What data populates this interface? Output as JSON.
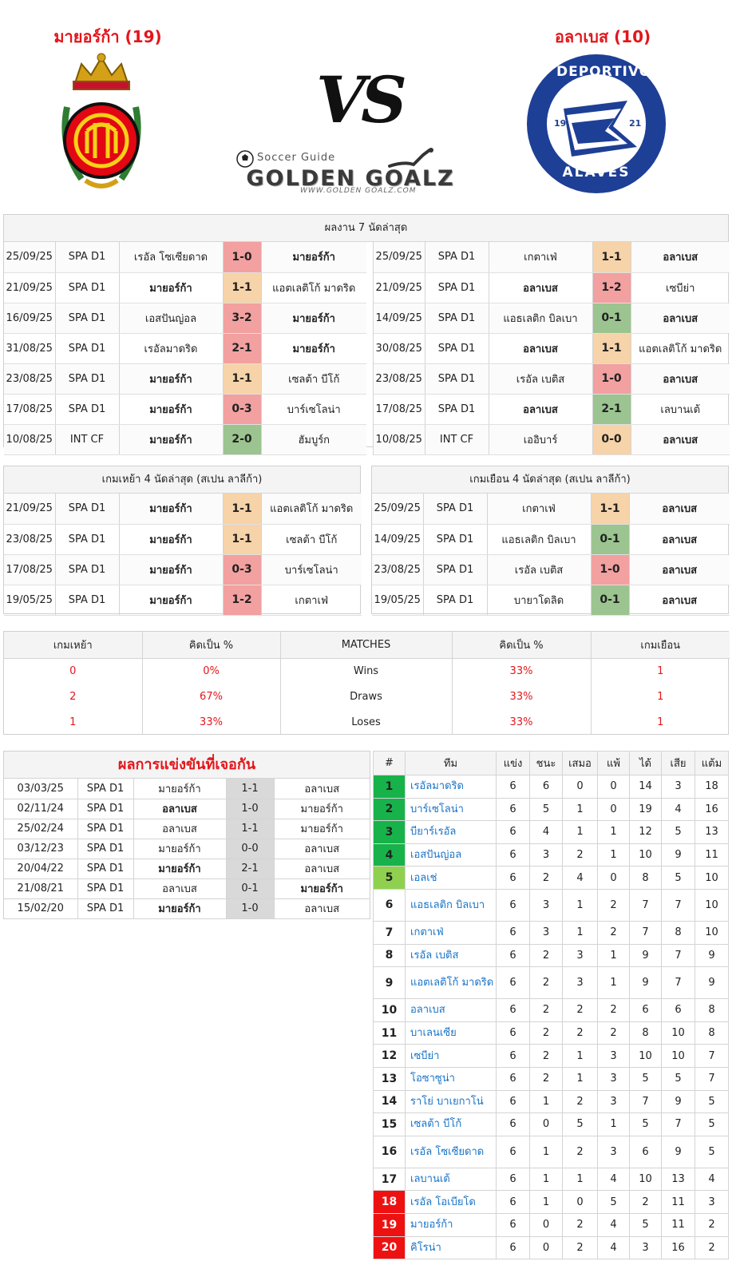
{
  "header": {
    "home_title": "มายอร์ก้า (19)",
    "away_title": "อลาเบส (10)",
    "vs_text": "VS",
    "brand_sub": "Soccer Guide",
    "brand_main": "GOLDEN GOALZ",
    "brand_url": "WWW.GOLDEN GOALZ.COM",
    "away_logo_text_top": "DEPORTIVO",
    "away_logo_text_bottom": "ALAVÉS",
    "away_logo_year_left": "19",
    "away_logo_year_right": "21",
    "away_logo_mono": "DA"
  },
  "last7": {
    "title": "ผลงาน 7 นัดล่าสุด",
    "home": [
      {
        "date": "25/09/25",
        "comp": "SPA D1",
        "home": "เรอัล โซเซียดาด",
        "score": "1-0",
        "away": "มายอร์ก้า",
        "bold": "away",
        "res": "loss"
      },
      {
        "date": "21/09/25",
        "comp": "SPA D1",
        "home": "มายอร์ก้า",
        "score": "1-1",
        "away": "แอตเลติโก้ มาดริด",
        "bold": "home",
        "res": "draw"
      },
      {
        "date": "16/09/25",
        "comp": "SPA D1",
        "home": "เอสปันญ่อล",
        "score": "3-2",
        "away": "มายอร์ก้า",
        "bold": "away",
        "res": "loss"
      },
      {
        "date": "31/08/25",
        "comp": "SPA D1",
        "home": "เรอัลมาดริด",
        "score": "2-1",
        "away": "มายอร์ก้า",
        "bold": "away",
        "res": "loss"
      },
      {
        "date": "23/08/25",
        "comp": "SPA D1",
        "home": "มายอร์ก้า",
        "score": "1-1",
        "away": "เซลต้า บีโก้",
        "bold": "home",
        "res": "draw"
      },
      {
        "date": "17/08/25",
        "comp": "SPA D1",
        "home": "มายอร์ก้า",
        "score": "0-3",
        "away": "บาร์เซโลน่า",
        "bold": "home",
        "res": "loss"
      },
      {
        "date": "10/08/25",
        "comp": "INT CF",
        "home": "มายอร์ก้า",
        "score": "2-0",
        "away": "ฮัมบูร์ก",
        "bold": "home",
        "res": "win"
      }
    ],
    "away": [
      {
        "date": "25/09/25",
        "comp": "SPA D1",
        "home": "เกตาเฟ่",
        "score": "1-1",
        "away": "อลาเบส",
        "bold": "away",
        "res": "draw"
      },
      {
        "date": "21/09/25",
        "comp": "SPA D1",
        "home": "อลาเบส",
        "score": "1-2",
        "away": "เซบีย่า",
        "bold": "home",
        "res": "loss"
      },
      {
        "date": "14/09/25",
        "comp": "SPA D1",
        "home": "แอธเลติก บิลเบา",
        "score": "0-1",
        "away": "อลาเบส",
        "bold": "away",
        "res": "win"
      },
      {
        "date": "30/08/25",
        "comp": "SPA D1",
        "home": "อลาเบส",
        "score": "1-1",
        "away": "แอตเลติโก้ มาดริด",
        "bold": "home",
        "res": "draw"
      },
      {
        "date": "23/08/25",
        "comp": "SPA D1",
        "home": "เรอัล เบติส",
        "score": "1-0",
        "away": "อลาเบส",
        "bold": "away",
        "res": "loss"
      },
      {
        "date": "17/08/25",
        "comp": "SPA D1",
        "home": "อลาเบส",
        "score": "2-1",
        "away": "เลบานเต้",
        "bold": "home",
        "res": "win"
      },
      {
        "date": "10/08/25",
        "comp": "INT CF",
        "home": "เออิบาร์",
        "score": "0-0",
        "away": "อลาเบส",
        "bold": "away",
        "res": "draw"
      }
    ]
  },
  "last4": {
    "home_title": "เกมเหย้า 4 นัดล่าสุด (สเปน ลาลีก้า)",
    "away_title": "เกมเยือน 4 นัดล่าสุด (สเปน ลาลีก้า)",
    "home": [
      {
        "date": "21/09/25",
        "comp": "SPA D1",
        "home": "มายอร์ก้า",
        "score": "1-1",
        "away": "แอตเลติโก้ มาดริด",
        "bold": "home",
        "res": "draw"
      },
      {
        "date": "23/08/25",
        "comp": "SPA D1",
        "home": "มายอร์ก้า",
        "score": "1-1",
        "away": "เซลต้า บีโก้",
        "bold": "home",
        "res": "draw"
      },
      {
        "date": "17/08/25",
        "comp": "SPA D1",
        "home": "มายอร์ก้า",
        "score": "0-3",
        "away": "บาร์เซโลน่า",
        "bold": "home",
        "res": "loss"
      },
      {
        "date": "19/05/25",
        "comp": "SPA D1",
        "home": "มายอร์ก้า",
        "score": "1-2",
        "away": "เกตาเฟ่",
        "bold": "home",
        "res": "loss"
      }
    ],
    "away": [
      {
        "date": "25/09/25",
        "comp": "SPA D1",
        "home": "เกตาเฟ่",
        "score": "1-1",
        "away": "อลาเบส",
        "bold": "away",
        "res": "draw"
      },
      {
        "date": "14/09/25",
        "comp": "SPA D1",
        "home": "แอธเลติก บิลเบา",
        "score": "0-1",
        "away": "อลาเบส",
        "bold": "away",
        "res": "win"
      },
      {
        "date": "23/08/25",
        "comp": "SPA D1",
        "home": "เรอัล เบติส",
        "score": "1-0",
        "away": "อลาเบส",
        "bold": "away",
        "res": "loss"
      },
      {
        "date": "19/05/25",
        "comp": "SPA D1",
        "home": "บายาโดลิด",
        "score": "0-1",
        "away": "อลาเบส",
        "bold": "away",
        "res": "win"
      }
    ]
  },
  "stats": {
    "headers": [
      "เกมเหย้า",
      "คิดเป็น %",
      "MATCHES",
      "คิดเป็น %",
      "เกมเยือน"
    ],
    "rows": [
      {
        "home": "0",
        "home_pct": "0%",
        "label": "Wins",
        "away_pct": "33%",
        "away": "1"
      },
      {
        "home": "2",
        "home_pct": "67%",
        "label": "Draws",
        "away_pct": "33%",
        "away": "1"
      },
      {
        "home": "1",
        "home_pct": "33%",
        "label": "Loses",
        "away_pct": "33%",
        "away": "1"
      }
    ]
  },
  "h2h": {
    "title": "ผลการแข่งขันที่เจอกัน",
    "rows": [
      {
        "date": "03/03/25",
        "comp": "SPA D1",
        "home": "มายอร์ก้า",
        "score": "1-1",
        "away": "อลาเบส",
        "bold": "none"
      },
      {
        "date": "02/11/24",
        "comp": "SPA D1",
        "home": "อลาเบส",
        "score": "1-0",
        "away": "มายอร์ก้า",
        "bold": "home"
      },
      {
        "date": "25/02/24",
        "comp": "SPA D1",
        "home": "อลาเบส",
        "score": "1-1",
        "away": "มายอร์ก้า",
        "bold": "none"
      },
      {
        "date": "03/12/23",
        "comp": "SPA D1",
        "home": "มายอร์ก้า",
        "score": "0-0",
        "away": "อลาเบส",
        "bold": "none"
      },
      {
        "date": "20/04/22",
        "comp": "SPA D1",
        "home": "มายอร์ก้า",
        "score": "2-1",
        "away": "อลาเบส",
        "bold": "home"
      },
      {
        "date": "21/08/21",
        "comp": "SPA D1",
        "home": "อลาเบส",
        "score": "0-1",
        "away": "มายอร์ก้า",
        "bold": "away"
      },
      {
        "date": "15/02/20",
        "comp": "SPA D1",
        "home": "มายอร์ก้า",
        "score": "1-0",
        "away": "อลาเบส",
        "bold": "home"
      }
    ]
  },
  "league": {
    "headers": [
      "#",
      "ทีม",
      "แข่ง",
      "ชนะ",
      "เสมอ",
      "แพ้",
      "ได้",
      "เสีย",
      "แต้ม"
    ],
    "colors": {
      "cl": "#17b34a",
      "el": "#8fd14f",
      "rel": "#ee1111"
    },
    "rows": [
      {
        "pos": "1",
        "team": "เรอัลมาดริด",
        "p": "6",
        "w": "6",
        "d": "0",
        "l": "0",
        "gf": "14",
        "ga": "3",
        "pts": "18",
        "zone": "cl"
      },
      {
        "pos": "2",
        "team": "บาร์เซโลน่า",
        "p": "6",
        "w": "5",
        "d": "1",
        "l": "0",
        "gf": "19",
        "ga": "4",
        "pts": "16",
        "zone": "cl"
      },
      {
        "pos": "3",
        "team": "บียาร์เรอัล",
        "p": "6",
        "w": "4",
        "d": "1",
        "l": "1",
        "gf": "12",
        "ga": "5",
        "pts": "13",
        "zone": "cl"
      },
      {
        "pos": "4",
        "team": "เอสปันญ่อล",
        "p": "6",
        "w": "3",
        "d": "2",
        "l": "1",
        "gf": "10",
        "ga": "9",
        "pts": "11",
        "zone": "cl"
      },
      {
        "pos": "5",
        "team": "เอลเช่",
        "p": "6",
        "w": "2",
        "d": "4",
        "l": "0",
        "gf": "8",
        "ga": "5",
        "pts": "10",
        "zone": "el"
      },
      {
        "pos": "6",
        "team": "แอธเลติก บิลเบา",
        "p": "6",
        "w": "3",
        "d": "1",
        "l": "2",
        "gf": "7",
        "ga": "7",
        "pts": "10",
        "zone": ""
      },
      {
        "pos": "7",
        "team": "เกตาเฟ่",
        "p": "6",
        "w": "3",
        "d": "1",
        "l": "2",
        "gf": "7",
        "ga": "8",
        "pts": "10",
        "zone": ""
      },
      {
        "pos": "8",
        "team": "เรอัล เบติส",
        "p": "6",
        "w": "2",
        "d": "3",
        "l": "1",
        "gf": "9",
        "ga": "7",
        "pts": "9",
        "zone": ""
      },
      {
        "pos": "9",
        "team": "แอตเลติโก้ มาดริด",
        "p": "6",
        "w": "2",
        "d": "3",
        "l": "1",
        "gf": "9",
        "ga": "7",
        "pts": "9",
        "zone": ""
      },
      {
        "pos": "10",
        "team": "อลาเบส",
        "p": "6",
        "w": "2",
        "d": "2",
        "l": "2",
        "gf": "6",
        "ga": "6",
        "pts": "8",
        "zone": ""
      },
      {
        "pos": "11",
        "team": "บาเลนเซีย",
        "p": "6",
        "w": "2",
        "d": "2",
        "l": "2",
        "gf": "8",
        "ga": "10",
        "pts": "8",
        "zone": ""
      },
      {
        "pos": "12",
        "team": "เซบีย่า",
        "p": "6",
        "w": "2",
        "d": "1",
        "l": "3",
        "gf": "10",
        "ga": "10",
        "pts": "7",
        "zone": ""
      },
      {
        "pos": "13",
        "team": "โอซาซูน่า",
        "p": "6",
        "w": "2",
        "d": "1",
        "l": "3",
        "gf": "5",
        "ga": "5",
        "pts": "7",
        "zone": ""
      },
      {
        "pos": "14",
        "team": "ราโย่ บาเยกาโน่",
        "p": "6",
        "w": "1",
        "d": "2",
        "l": "3",
        "gf": "7",
        "ga": "9",
        "pts": "5",
        "zone": ""
      },
      {
        "pos": "15",
        "team": "เซลต้า บีโก้",
        "p": "6",
        "w": "0",
        "d": "5",
        "l": "1",
        "gf": "5",
        "ga": "7",
        "pts": "5",
        "zone": ""
      },
      {
        "pos": "16",
        "team": "เรอัล โซเซียดาด",
        "p": "6",
        "w": "1",
        "d": "2",
        "l": "3",
        "gf": "6",
        "ga": "9",
        "pts": "5",
        "zone": ""
      },
      {
        "pos": "17",
        "team": "เลบานเต้",
        "p": "6",
        "w": "1",
        "d": "1",
        "l": "4",
        "gf": "10",
        "ga": "13",
        "pts": "4",
        "zone": ""
      },
      {
        "pos": "18",
        "team": "เรอัล โอเบียโด",
        "p": "6",
        "w": "1",
        "d": "0",
        "l": "5",
        "gf": "2",
        "ga": "11",
        "pts": "3",
        "zone": "rel"
      },
      {
        "pos": "19",
        "team": "มายอร์ก้า",
        "p": "6",
        "w": "0",
        "d": "2",
        "l": "4",
        "gf": "5",
        "ga": "11",
        "pts": "2",
        "zone": "rel"
      },
      {
        "pos": "20",
        "team": "คิโรน่า",
        "p": "6",
        "w": "0",
        "d": "2",
        "l": "4",
        "gf": "3",
        "ga": "16",
        "pts": "2",
        "zone": "rel"
      }
    ]
  }
}
